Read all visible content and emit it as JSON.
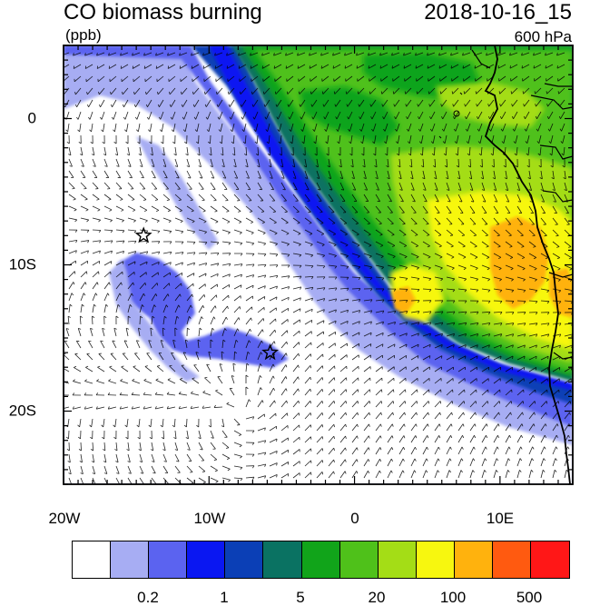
{
  "header": {
    "title": "CO biomass burning",
    "timestamp": "2018-10-16_15",
    "units": "(ppb)",
    "level": "600 hPa"
  },
  "map": {
    "lat_ticks": [
      "0",
      "10S",
      "20S"
    ],
    "lon_ticks": [
      "20W",
      "10W",
      "0",
      "10E"
    ],
    "markers": [
      {
        "name": "star-marker-1",
        "lon": -14.5,
        "lat": -8.0
      },
      {
        "name": "star-marker-2",
        "lon": -5.8,
        "lat": -16.0
      }
    ]
  },
  "colorbar": {
    "colors": [
      "#ffffff",
      "#a7adf3",
      "#5b63f0",
      "#0a17f2",
      "#0b3fb6",
      "#0a7262",
      "#11a41a",
      "#4fc11a",
      "#a4dd16",
      "#f7f70f",
      "#ffb20d",
      "#ff5a10",
      "#ff1717"
    ],
    "labels": [
      "0.2",
      "1",
      "5",
      "20",
      "100",
      "500"
    ]
  }
}
